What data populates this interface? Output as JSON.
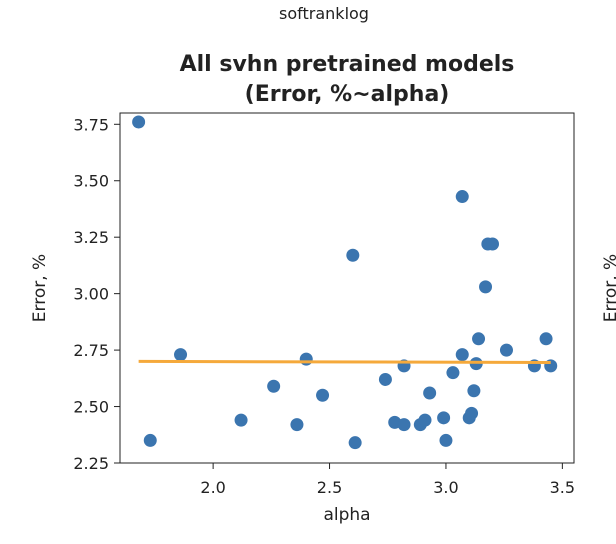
{
  "figure": {
    "suptitle": "softranklog"
  },
  "chart_data": {
    "type": "scatter",
    "title": "All svhn pretrained models\n(Error, %~alpha)",
    "title_lines": [
      "All svhn pretrained models",
      "(Error, %~alpha)"
    ],
    "xlabel": "alpha",
    "ylabel": "Error, %",
    "xlim": [
      1.6,
      3.55
    ],
    "ylim": [
      2.25,
      3.8
    ],
    "xticks": [
      2.0,
      2.5,
      3.0,
      3.5
    ],
    "xtick_labels": [
      "2.0",
      "2.5",
      "3.0",
      "3.5"
    ],
    "yticks": [
      2.25,
      2.5,
      2.75,
      3.0,
      3.25,
      3.5,
      3.75
    ],
    "ytick_labels": [
      "2.25",
      "2.50",
      "2.75",
      "3.00",
      "3.25",
      "3.50",
      "3.75"
    ],
    "grid": false,
    "colors": {
      "points": "#3b75af",
      "fit_line": "#f5a93b",
      "axes": "#222222"
    },
    "series": [
      {
        "values": [
          {
            "x": 1.68,
            "y": 3.76
          },
          {
            "x": 1.73,
            "y": 2.35
          },
          {
            "x": 1.86,
            "y": 2.73
          },
          {
            "x": 2.12,
            "y": 2.44
          },
          {
            "x": 2.26,
            "y": 2.59
          },
          {
            "x": 2.36,
            "y": 2.42
          },
          {
            "x": 2.4,
            "y": 2.71
          },
          {
            "x": 2.47,
            "y": 2.55
          },
          {
            "x": 2.6,
            "y": 3.17
          },
          {
            "x": 2.61,
            "y": 2.34
          },
          {
            "x": 2.74,
            "y": 2.62
          },
          {
            "x": 2.78,
            "y": 2.43
          },
          {
            "x": 2.82,
            "y": 2.68
          },
          {
            "x": 2.82,
            "y": 2.42
          },
          {
            "x": 2.89,
            "y": 2.42
          },
          {
            "x": 2.91,
            "y": 2.44
          },
          {
            "x": 2.93,
            "y": 2.56
          },
          {
            "x": 2.99,
            "y": 2.45
          },
          {
            "x": 3.0,
            "y": 2.35
          },
          {
            "x": 3.03,
            "y": 2.65
          },
          {
            "x": 3.07,
            "y": 3.43
          },
          {
            "x": 3.07,
            "y": 2.73
          },
          {
            "x": 3.1,
            "y": 2.45
          },
          {
            "x": 3.11,
            "y": 2.47
          },
          {
            "x": 3.12,
            "y": 2.57
          },
          {
            "x": 3.13,
            "y": 2.69
          },
          {
            "x": 3.14,
            "y": 2.8
          },
          {
            "x": 3.17,
            "y": 3.03
          },
          {
            "x": 3.18,
            "y": 3.22
          },
          {
            "x": 3.2,
            "y": 3.22
          },
          {
            "x": 3.26,
            "y": 2.75
          },
          {
            "x": 3.38,
            "y": 2.68
          },
          {
            "x": 3.43,
            "y": 2.8
          },
          {
            "x": 3.45,
            "y": 2.68
          }
        ]
      }
    ],
    "fit_line": {
      "x": [
        1.68,
        3.45
      ],
      "y": [
        2.7,
        2.695
      ]
    }
  },
  "adjacent_panel": {
    "ylabel_partial": "Error, %"
  }
}
